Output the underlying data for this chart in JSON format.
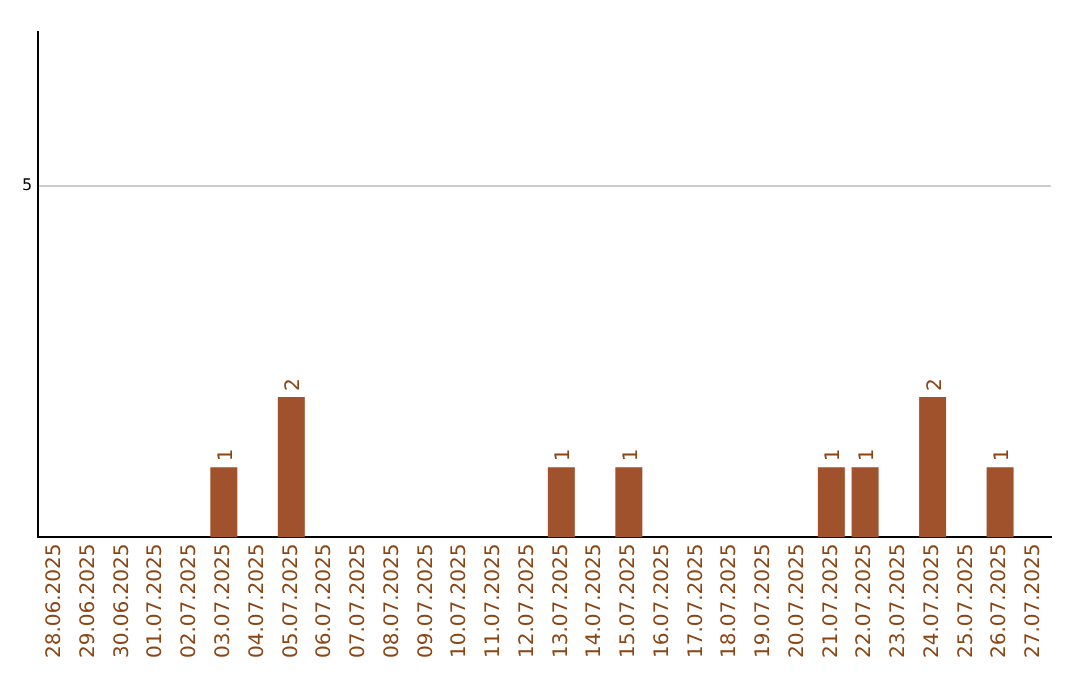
{
  "chart_data": {
    "type": "bar",
    "categories": [
      "28.06.2025",
      "29.06.2025",
      "30.06.2025",
      "01.07.2025",
      "02.07.2025",
      "03.07.2025",
      "04.07.2025",
      "05.07.2025",
      "06.07.2025",
      "07.07.2025",
      "08.07.2025",
      "09.07.2025",
      "10.07.2025",
      "11.07.2025",
      "12.07.2025",
      "13.07.2025",
      "14.07.2025",
      "15.07.2025",
      "16.07.2025",
      "17.07.2025",
      "18.07.2025",
      "19.07.2025",
      "20.07.2025",
      "21.07.2025",
      "22.07.2025",
      "23.07.2025",
      "24.07.2025",
      "25.07.2025",
      "26.07.2025",
      "27.07.2025"
    ],
    "values": [
      0,
      0,
      0,
      0,
      0,
      1,
      0,
      2,
      0,
      0,
      0,
      0,
      0,
      0,
      0,
      1,
      0,
      1,
      0,
      0,
      0,
      0,
      0,
      1,
      1,
      0,
      2,
      0,
      1,
      0
    ],
    "value_labels": [
      null,
      null,
      null,
      null,
      null,
      "1",
      null,
      "2",
      null,
      null,
      null,
      null,
      null,
      null,
      null,
      "1",
      null,
      "1",
      null,
      null,
      null,
      null,
      null,
      "1",
      "1",
      null,
      "2",
      null,
      "1",
      null
    ],
    "color": "#a0522d",
    "ylim": [
      0,
      7.2
    ],
    "yticks": [
      5
    ],
    "grid": "y",
    "legend": false
  }
}
